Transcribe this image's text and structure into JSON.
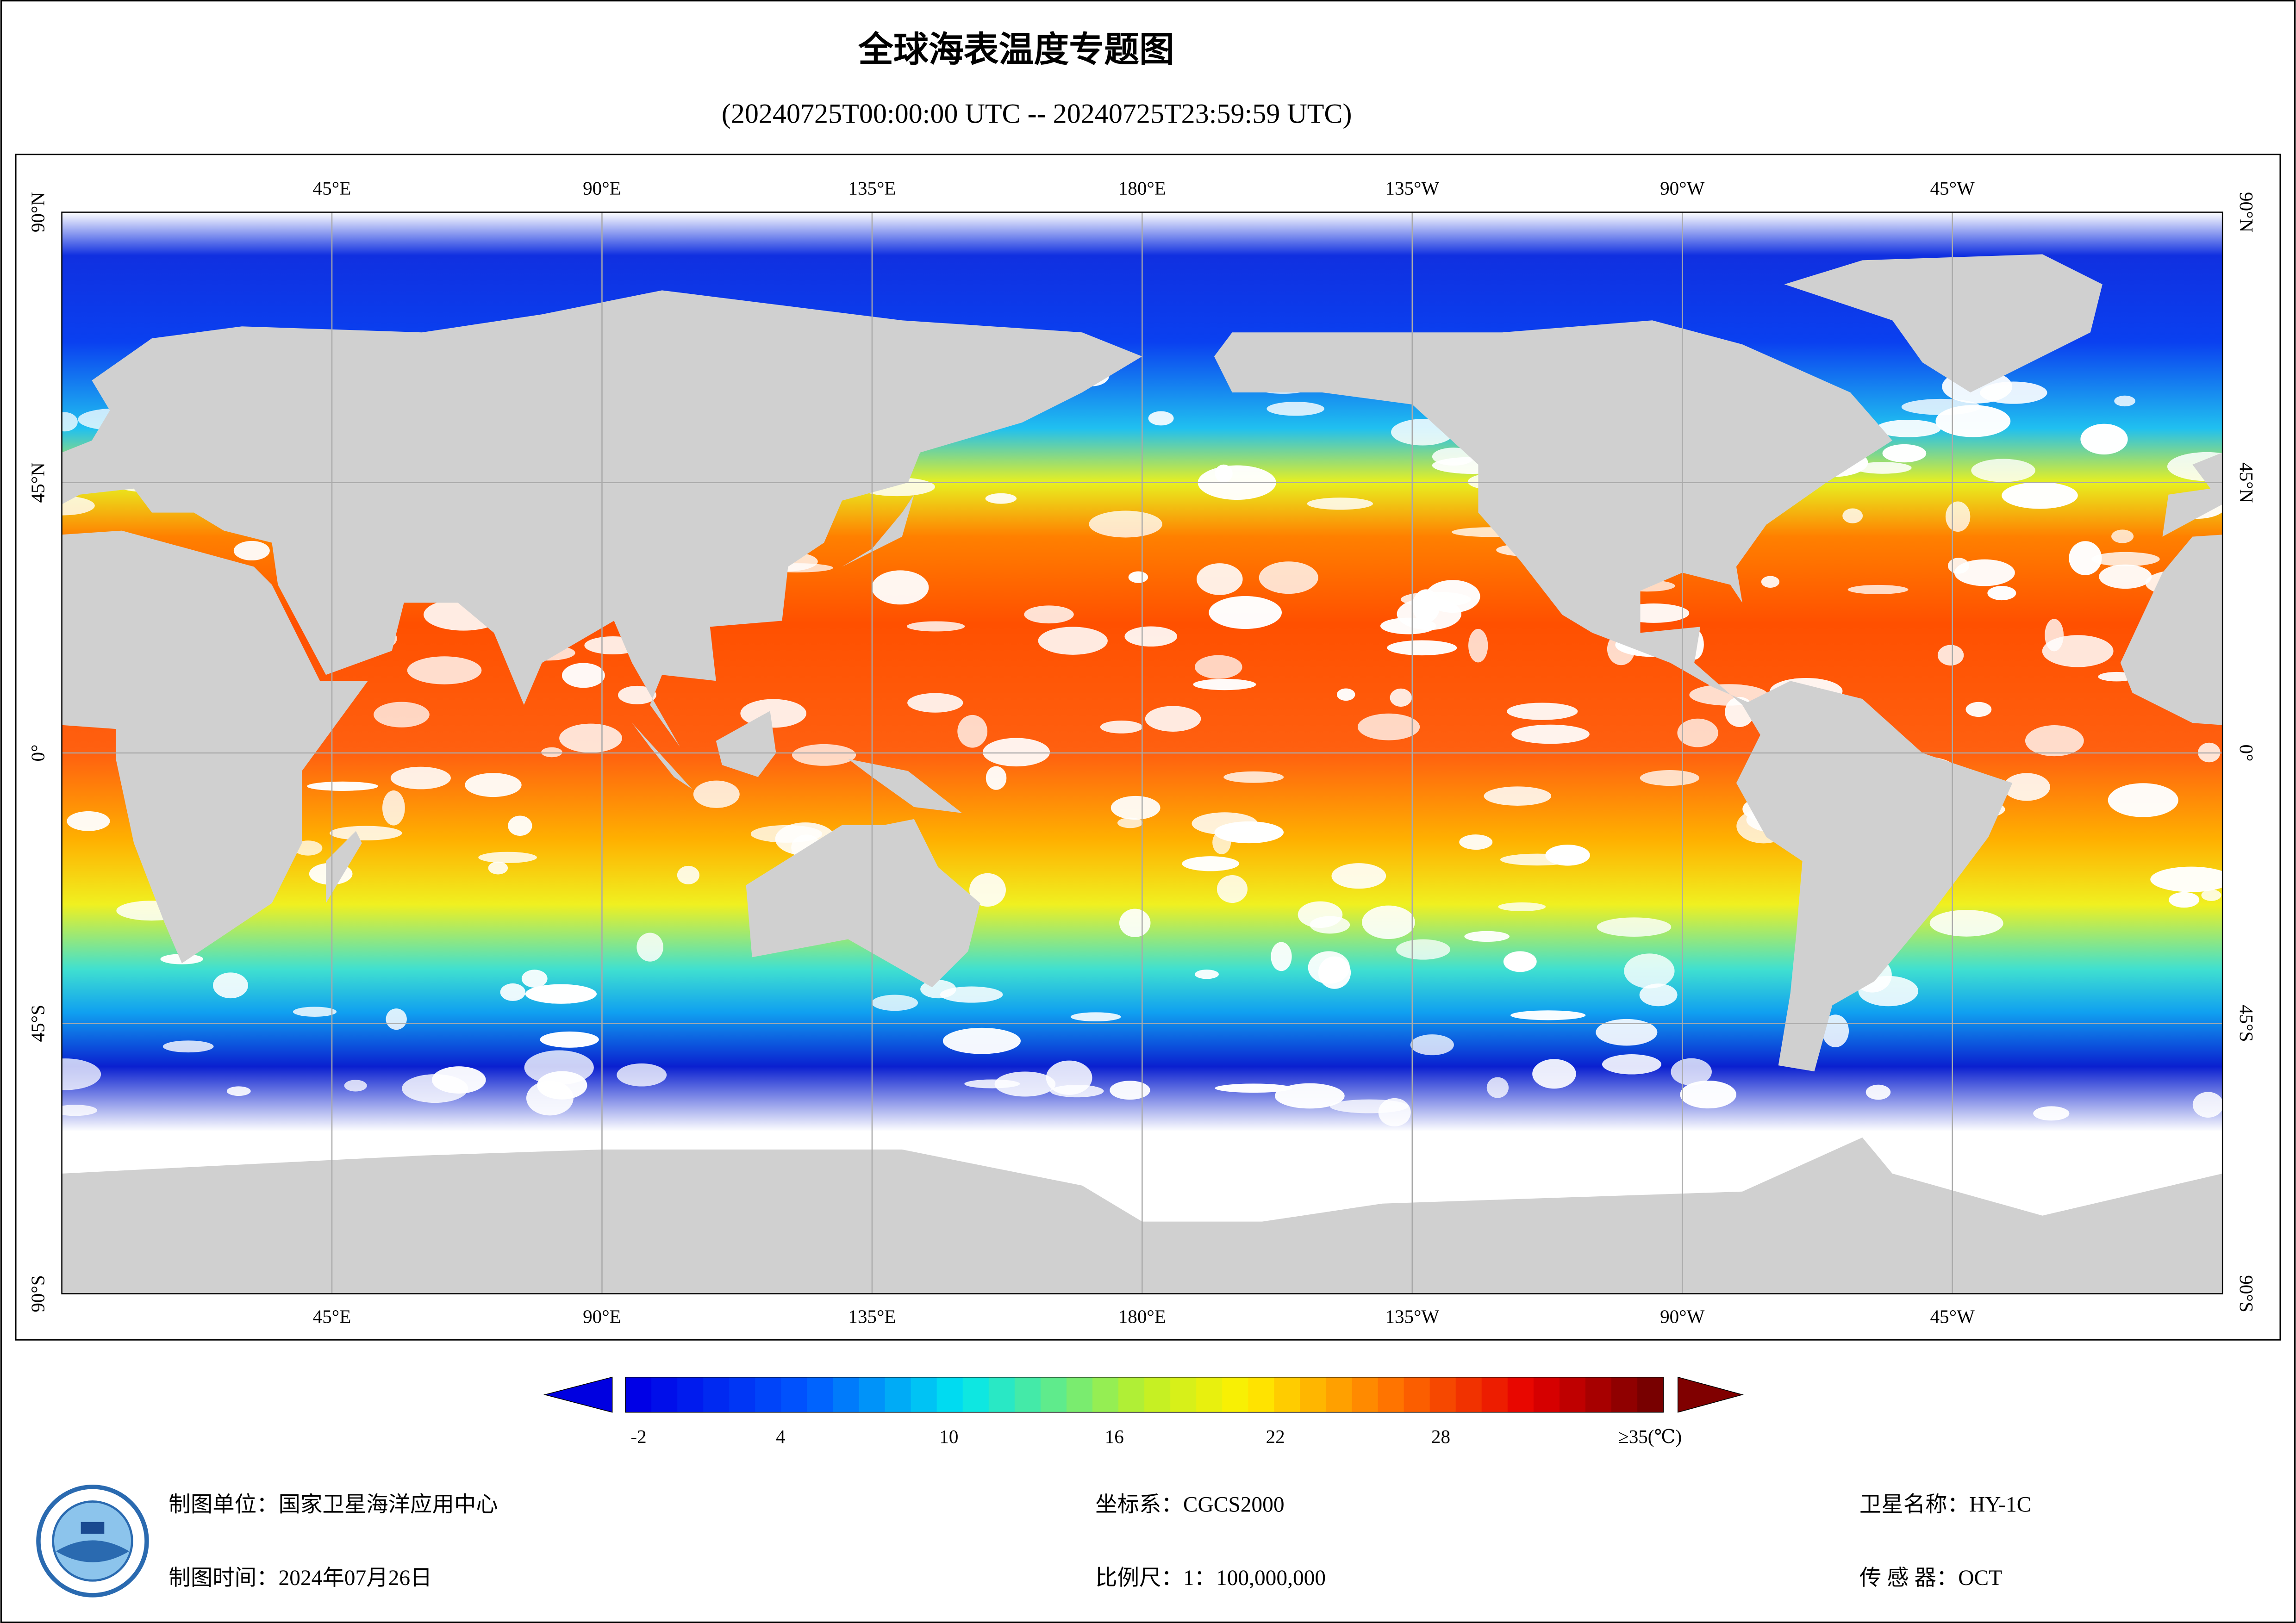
{
  "header": {
    "title": "全球海表温度专题图",
    "subtitle": "(20240725T00:00:00 UTC -- 20240725T23:59:59 UTC)"
  },
  "map": {
    "lon_labels": [
      "45°E",
      "90°E",
      "135°E",
      "180°E",
      "135°W",
      "90°W",
      "45°W"
    ],
    "lat_labels": [
      "90°N",
      "45°N",
      "0°",
      "45°S",
      "90°S"
    ]
  },
  "colorbar": {
    "labels": [
      "-2",
      "4",
      "10",
      "16",
      "22",
      "28",
      "≥35(℃)"
    ]
  },
  "footer": {
    "unit": "制图单位：国家卫星海洋应用中心",
    "date": "制图时间：2024年07月26日",
    "crs": "坐标系：CGCS2000",
    "scale": "比例尺：1：100,000,000",
    "satellite": "卫星名称：HY-1C",
    "sensor": "传 感 器：OCT"
  }
}
